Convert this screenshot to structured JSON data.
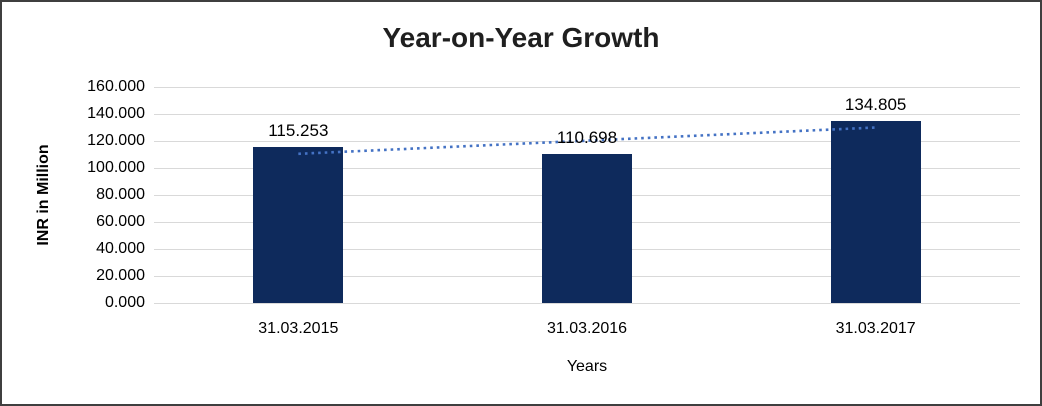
{
  "chart_data": {
    "type": "bar",
    "title": "Year-on-Year Growth",
    "categories": [
      "31.03.2015",
      "31.03.2016",
      "31.03.2017"
    ],
    "values": [
      115.253,
      110.698,
      134.805
    ],
    "data_labels": [
      "115.253",
      "110.698",
      "134.805"
    ],
    "xlabel": "Years",
    "ylabel": "INR in Million",
    "ylim": [
      0,
      160
    ],
    "ytick_step": 20,
    "ytick_labels": [
      "0.000",
      "20.000",
      "40.000",
      "60.000",
      "80.000",
      "100.000",
      "120.000",
      "140.000",
      "160.000"
    ],
    "grid": true,
    "legend": false,
    "trendline": {
      "type": "linear",
      "style": "dotted",
      "start_value": 110.5,
      "end_value": 130.0
    }
  },
  "colors": {
    "bar": "#0e2a5c",
    "trendline": "#4472c4",
    "gridline": "#d9d9d9",
    "text": "#000000",
    "title_text": "#1f1f1f",
    "border": "#3f3f3f"
  }
}
